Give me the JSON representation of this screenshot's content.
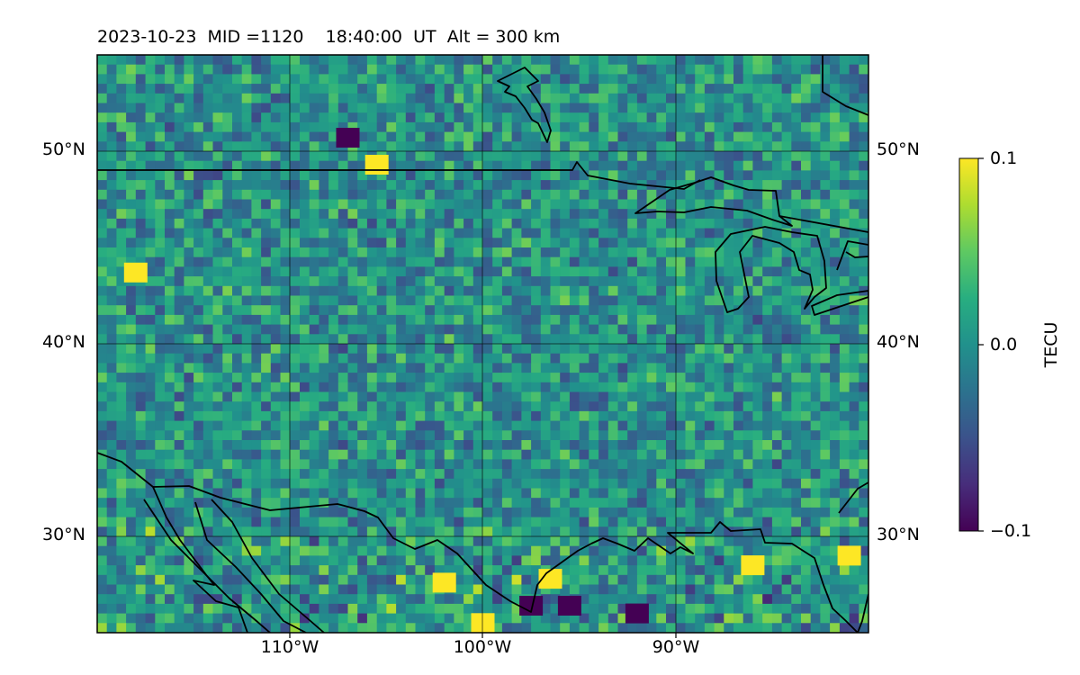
{
  "title": {
    "date": "2023-10-23",
    "mid": "MID =1120",
    "time": "18:40:00",
    "ut": "UT",
    "alt": "Alt = 300 km"
  },
  "map": {
    "projection": "PlateCarree",
    "lon_range": [
      -120,
      -80
    ],
    "lat_range": [
      25,
      55
    ],
    "gridlines": true,
    "lat_ticks": [
      {
        "value": 50,
        "label": "50°N"
      },
      {
        "value": 40,
        "label": "40°N"
      },
      {
        "value": 30,
        "label": "30°N"
      }
    ],
    "lon_ticks": [
      {
        "value": -110,
        "label": "110°W"
      },
      {
        "value": -100,
        "label": "100°W"
      },
      {
        "value": -90,
        "label": "90°W"
      }
    ],
    "features": [
      "coastlines",
      "country-borders",
      "great-lakes"
    ],
    "colormap": "viridis"
  },
  "colorbar": {
    "label": "TECU",
    "min": -0.1,
    "max": 0.1,
    "ticks": [
      {
        "value": 0.1,
        "label": "0.1"
      },
      {
        "value": 0.0,
        "label": "0.0"
      },
      {
        "value": -0.1,
        "label": "−0.1"
      }
    ]
  },
  "chart_data": {
    "type": "heatmap",
    "title": "2023-10-23  MID =1120    18:40:00  UT  Alt = 300 km",
    "xlabel": "",
    "ylabel": "",
    "xlim": [
      -120,
      -80
    ],
    "ylim": [
      25,
      55
    ],
    "zlabel": "TECU",
    "zlim": [
      -0.1,
      0.1
    ],
    "grid": true,
    "notes_cells": "per-cell dTEC values (roughly -0.1 to 0.1 TECU) are noise-like and not individually readable; salient anomalies listed below",
    "anomalies": [
      {
        "lon": -97.5,
        "lat": 26.4,
        "value": -0.1
      },
      {
        "lon": -95.5,
        "lat": 26.4,
        "value": -0.1
      },
      {
        "lon": -92.0,
        "lat": 26.0,
        "value": -0.1
      },
      {
        "lon": -100.0,
        "lat": 25.5,
        "value": 0.1
      },
      {
        "lon": -102.0,
        "lat": 27.6,
        "value": 0.1
      },
      {
        "lon": -96.5,
        "lat": 27.8,
        "value": 0.1
      },
      {
        "lon": -86.0,
        "lat": 28.5,
        "value": 0.1
      },
      {
        "lon": -81.0,
        "lat": 29.0,
        "value": 0.1
      },
      {
        "lon": -107.0,
        "lat": 50.7,
        "value": -0.1
      },
      {
        "lon": -105.5,
        "lat": 49.3,
        "value": 0.1
      },
      {
        "lon": -118.0,
        "lat": 43.7,
        "value": 0.1
      }
    ]
  }
}
